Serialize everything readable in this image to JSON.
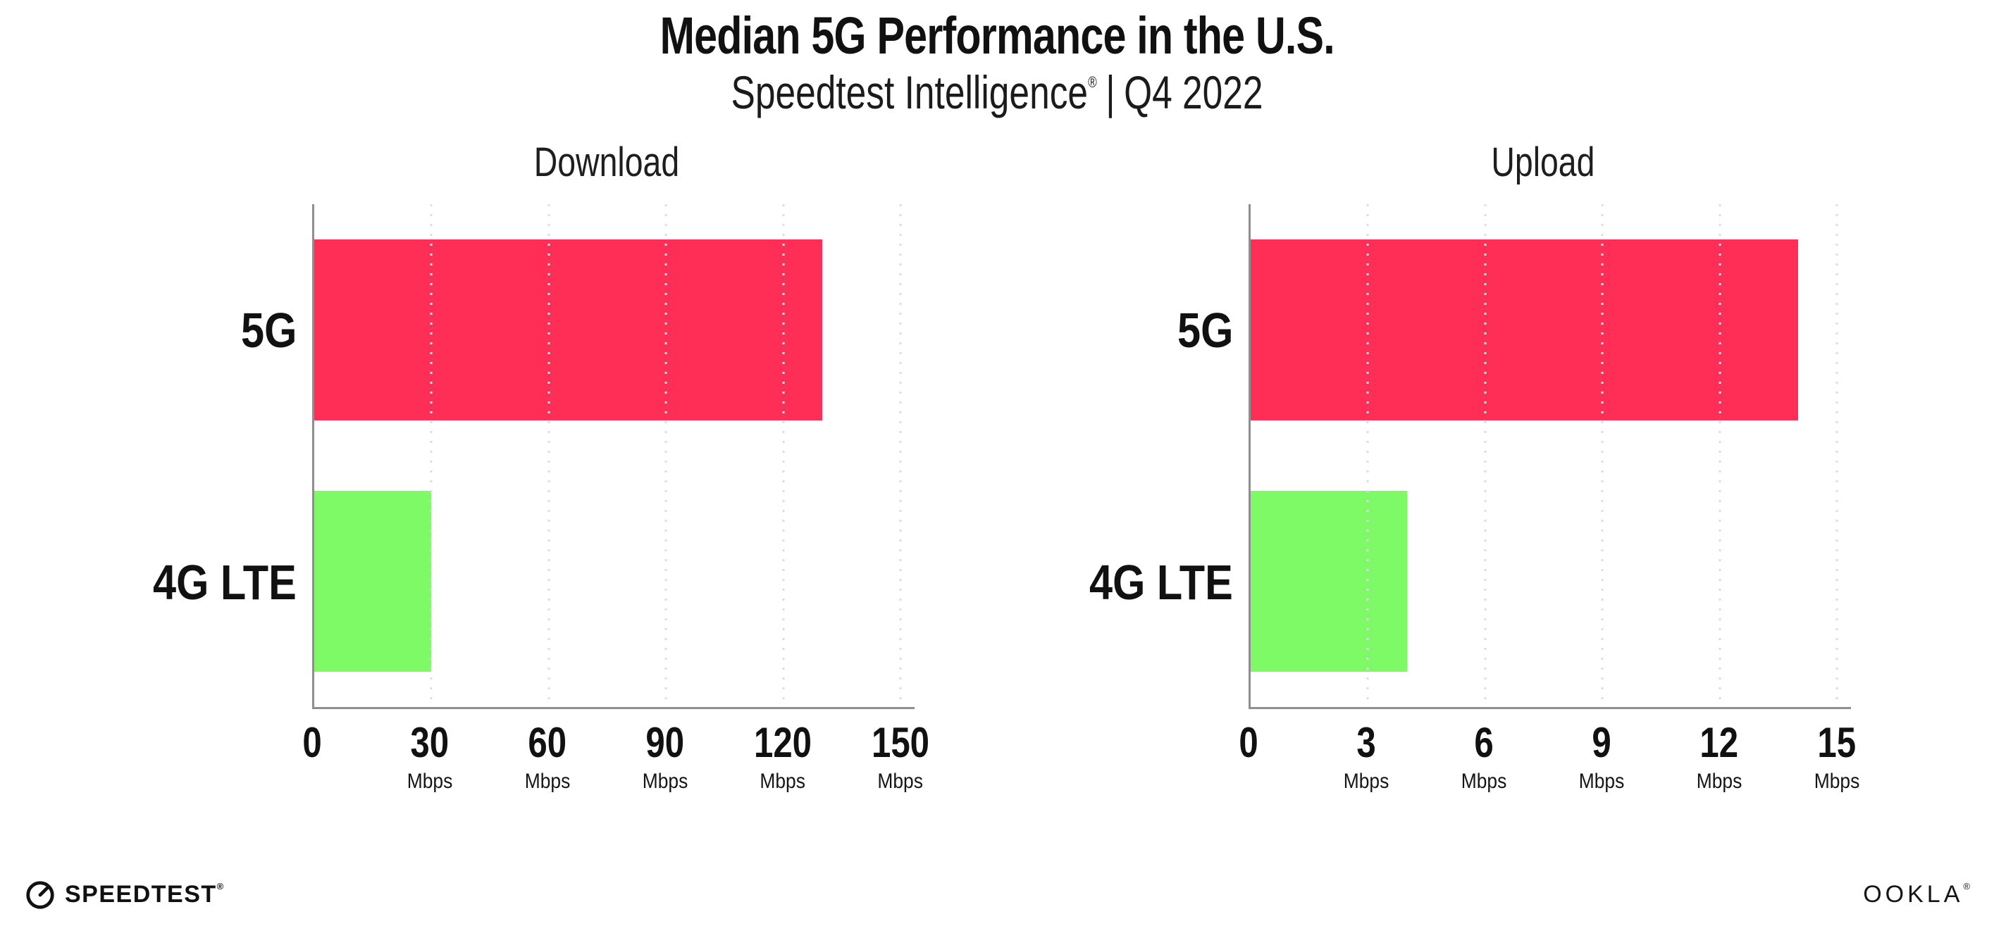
{
  "header": {
    "title": "Median 5G Performance in the U.S.",
    "subtitle_brand": "Speedtest Intelligence",
    "subtitle_reg": "®",
    "subtitle_separator": "|",
    "subtitle_period": "Q4 2022"
  },
  "colors": {
    "bar_5g": "#FF2E56",
    "bar_4g_lte": "#7DFA66",
    "axis": "#8F8F8F",
    "gridline": "#DBDCE5",
    "text": "#111111"
  },
  "chart_data": [
    {
      "type": "bar",
      "orientation": "horizontal",
      "title": "Download",
      "categories": [
        "5G",
        "4G LTE"
      ],
      "values": [
        130,
        30
      ],
      "unit": "Mbps",
      "xlim": [
        0,
        150
      ],
      "xticks": [
        0,
        30,
        60,
        90,
        120,
        150
      ],
      "grid": "dotted-vertical",
      "legend": "none",
      "bar_colors": [
        "#FF2E56",
        "#7DFA66"
      ]
    },
    {
      "type": "bar",
      "orientation": "horizontal",
      "title": "Upload",
      "categories": [
        "5G",
        "4G LTE"
      ],
      "values": [
        14,
        4
      ],
      "unit": "Mbps",
      "xlim": [
        0,
        15
      ],
      "xticks": [
        0,
        3,
        6,
        9,
        12,
        15
      ],
      "grid": "dotted-vertical",
      "legend": "none",
      "bar_colors": [
        "#FF2E56",
        "#7DFA66"
      ]
    }
  ],
  "footer": {
    "speedtest_label": "SPEEDTEST",
    "speedtest_reg": "®",
    "ookla_label": "OOKLA",
    "ookla_reg": "®"
  }
}
